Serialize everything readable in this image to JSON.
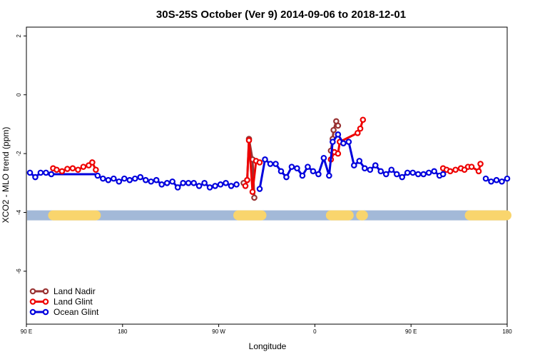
{
  "chart_data": {
    "type": "line",
    "title": "30S-25S October (Ver 9)   2014-09-06 to 2018-12-01",
    "xlabel": "Longitude",
    "ylabel": "XCO2 - MLO trend (ppm)",
    "xlim": [
      -90,
      180
    ],
    "ylim": [
      -7.8,
      2.3
    ],
    "x_ticks": [
      {
        "value": -90,
        "label": "90 E"
      },
      {
        "value": -36,
        "label": "180"
      },
      {
        "value": 18,
        "label": "90 W"
      },
      {
        "value": 72,
        "label": "0"
      },
      {
        "value": 126,
        "label": "90 E"
      },
      {
        "value": 180,
        "label": "180"
      }
    ],
    "y_ticks": [
      {
        "value": 2,
        "label": "2"
      },
      {
        "value": 0,
        "label": "0"
      },
      {
        "value": -2,
        "label": "-2"
      },
      {
        "value": -4,
        "label": "-4"
      },
      {
        "value": -6,
        "label": "-6"
      }
    ],
    "grid": false,
    "legend_position": "bottom-left",
    "surface_band": {
      "y": -4.1,
      "ocean_color": "#a3b9d8",
      "land_color": "#f9d56d",
      "land_segments": [
        [
          -75,
          -51
        ],
        [
          29,
          42
        ],
        [
          81,
          91
        ],
        [
          98,
          99
        ],
        [
          159,
          183
        ]
      ]
    },
    "series": [
      {
        "name": "Land Nadir",
        "color": "#993333",
        "x": [
          32,
          34,
          35,
          37,
          38,
          81,
          82,
          82.5,
          84,
          85
        ],
        "y": [
          -3.0,
          -2.9,
          -1.5,
          -2.2,
          -3.5,
          -1.9,
          -1.5,
          -1.2,
          -0.9,
          -1.05
        ]
      },
      {
        "name": "Land Glint",
        "color": "#ee0000",
        "x": [
          -75,
          -73,
          -70,
          -67,
          -64,
          -61,
          -58,
          -55,
          -53,
          -51,
          33,
          34,
          35,
          37,
          39,
          41,
          81,
          83,
          85,
          86,
          96,
          97.5,
          99,
          144,
          146,
          148,
          151,
          154,
          156,
          158,
          160,
          164,
          165
        ],
        "y": [
          -2.5,
          -2.55,
          -2.6,
          -2.52,
          -2.5,
          -2.55,
          -2.45,
          -2.4,
          -2.3,
          -2.55,
          -3.1,
          -2.9,
          -1.55,
          -3.3,
          -2.25,
          -2.3,
          -2.2,
          -1.95,
          -2.0,
          -1.6,
          -1.3,
          -1.15,
          -0.85,
          -2.5,
          -2.55,
          -2.6,
          -2.55,
          -2.5,
          -2.55,
          -2.45,
          -2.45,
          -2.6,
          -2.35
        ]
      },
      {
        "name": "Ocean Glint",
        "color": "#0000dd",
        "x": [
          -88,
          -85,
          -82,
          -79,
          -76,
          -50,
          -47,
          -44,
          -41,
          -38,
          -35,
          -32,
          -29,
          -26,
          -23,
          -20,
          -17,
          -14,
          -11,
          -8,
          -5,
          -2,
          1,
          4,
          7,
          10,
          13,
          16,
          19,
          22,
          25,
          28,
          41,
          44,
          47,
          50,
          53,
          56,
          59,
          62,
          65,
          68,
          71,
          74,
          77,
          80,
          82,
          85,
          88,
          91,
          94,
          97,
          100,
          103,
          106,
          109,
          112,
          115,
          118,
          121,
          124,
          127,
          130,
          133,
          136,
          139,
          142,
          144,
          168,
          171,
          174,
          177,
          180
        ],
        "y": [
          -2.65,
          -2.8,
          -2.65,
          -2.65,
          -2.7,
          -2.75,
          -2.85,
          -2.9,
          -2.85,
          -2.95,
          -2.85,
          -2.9,
          -2.85,
          -2.8,
          -2.9,
          -2.95,
          -2.9,
          -3.05,
          -3.0,
          -2.95,
          -3.15,
          -3.0,
          -3.0,
          -3.0,
          -3.1,
          -3.0,
          -3.15,
          -3.1,
          -3.05,
          -3.0,
          -3.1,
          -3.05,
          -3.2,
          -2.2,
          -2.35,
          -2.35,
          -2.6,
          -2.8,
          -2.45,
          -2.5,
          -2.75,
          -2.45,
          -2.6,
          -2.7,
          -2.15,
          -2.75,
          -1.6,
          -1.35,
          -1.65,
          -1.6,
          -2.4,
          -2.25,
          -2.5,
          -2.55,
          -2.4,
          -2.6,
          -2.7,
          -2.55,
          -2.7,
          -2.8,
          -2.65,
          -2.65,
          -2.7,
          -2.7,
          -2.65,
          -2.6,
          -2.75,
          -2.7,
          -2.85,
          -2.95,
          -2.9,
          -2.95,
          -2.85
        ]
      }
    ],
    "bold_lines": {
      "ocean_flat": {
        "x": [
          -79,
          -50
        ],
        "y": -2.7
      }
    }
  }
}
